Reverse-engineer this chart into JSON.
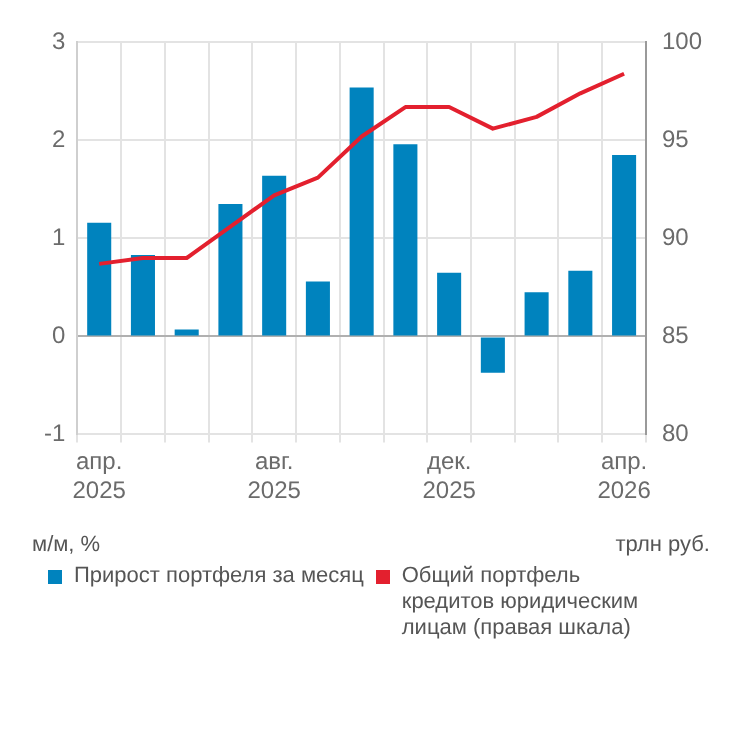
{
  "chart_data": {
    "type": "bar",
    "categories": [
      "апр.\n2025",
      null,
      null,
      null,
      "авг.\n2025",
      null,
      null,
      null,
      "дек.\n2025",
      null,
      null,
      null,
      "апр.\n2026"
    ],
    "ylabel": "м/м, %",
    "y2label": "трлн руб.",
    "series": [
      {
        "name": "Прирост портфеля за месяц",
        "color": "#0083be",
        "values": [
          1.16,
          0.83,
          0.07,
          1.35,
          1.64,
          0.56,
          2.54,
          1.96,
          0.65,
          -0.37,
          0.45,
          0.67,
          1.85
        ]
      },
      {
        "name": "Общий портфель кредитов юридическим лицам (правая шкала)",
        "type": "line",
        "axis": "y2",
        "color": "#e3202e",
        "values": [
          88.7,
          89.0,
          89.0,
          90.6,
          92.2,
          93.1,
          95.2,
          96.7,
          96.7,
          95.6,
          96.2,
          97.4,
          98.4
        ]
      }
    ],
    "ylim": [
      -1,
      3
    ],
    "yticks": [
      -1,
      0,
      1,
      2,
      3
    ],
    "y2lim": [
      80,
      100
    ],
    "y2ticks": [
      80,
      85,
      90,
      95,
      100
    ],
    "grid": true,
    "legend": "bottom",
    "marker": "none"
  }
}
